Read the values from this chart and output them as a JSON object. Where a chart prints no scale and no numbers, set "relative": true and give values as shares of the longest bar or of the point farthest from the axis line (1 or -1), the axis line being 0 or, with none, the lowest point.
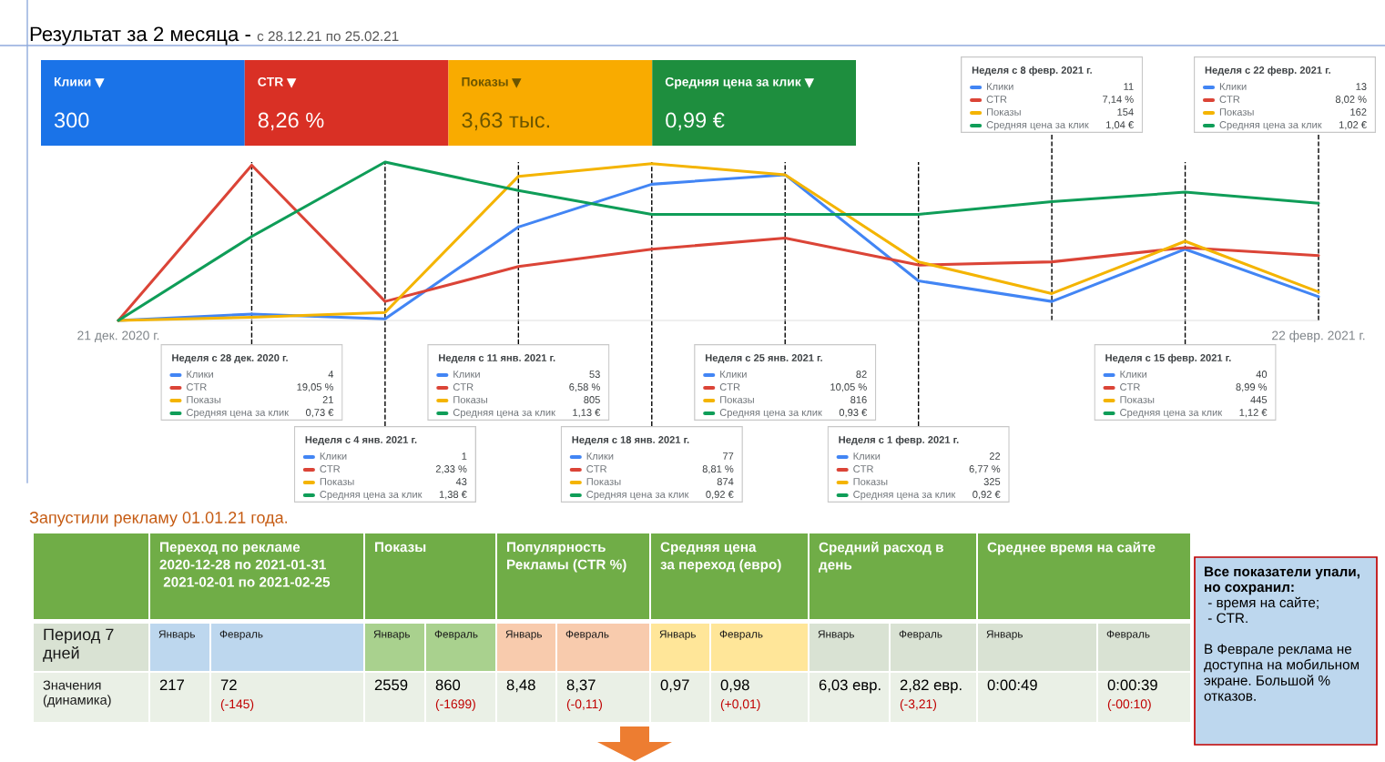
{
  "chart_data": [
    {
      "type": "other",
      "title": "Результат за 2 месяца -",
      "subtitle": "с 28.12.21 по 25.02.21",
      "categories": [
        "Клики",
        "CTR",
        "Показы",
        "Средняя цена за клик"
      ],
      "value_labels": [
        "300",
        "8,26 %",
        "3,63 тыс.",
        "0,99 €"
      ],
      "colors": [
        "#1a73e8",
        "#d93025",
        "#f9ab00",
        "#1e8e3e"
      ]
    },
    {
      "type": "line",
      "relative": true,
      "x": [
        "2020-12-21",
        "2020-12-28",
        "2021-01-04",
        "2021-01-11",
        "2021-01-18",
        "2021-01-25",
        "2021-02-01",
        "2021-02-08",
        "2021-02-15",
        "2021-02-22"
      ],
      "xlim": [
        "2020-12-21",
        "2021-02-22"
      ],
      "xticks": [
        {
          "value": "2020-12-21",
          "label": "21 дек. 2020 г."
        },
        {
          "value": "2021-02-22",
          "label": "22 февр. 2021 г."
        }
      ],
      "line_style": "solid",
      "series": [
        {
          "color": "#4285f4",
          "values": [
            0,
            0.04,
            0.01,
            0.59,
            0.86,
            0.92,
            0.25,
            0.12,
            0.45,
            0.15
          ]
        },
        {
          "color": "#db4437",
          "values": [
            0,
            0.98,
            0.12,
            0.34,
            0.45,
            0.52,
            0.35,
            0.37,
            0.46,
            0.41
          ]
        },
        {
          "color": "#f4b400",
          "values": [
            0,
            0.02,
            0.05,
            0.91,
            0.99,
            0.92,
            0.37,
            0.17,
            0.5,
            0.18
          ]
        },
        {
          "color": "#0f9d58",
          "values": [
            0,
            0.53,
            1,
            0.82,
            0.67,
            0.67,
            0.67,
            0.75,
            0.81,
            0.74
          ]
        }
      ],
      "ref_lines": [
        {
          "axis": "x",
          "value": "2020-12-28",
          "color": "#000000",
          "line_style": "dashed"
        },
        {
          "axis": "x",
          "value": "2021-01-04",
          "color": "#000000",
          "line_style": "dashed"
        },
        {
          "axis": "x",
          "value": "2021-01-11",
          "color": "#000000",
          "line_style": "dashed"
        },
        {
          "axis": "x",
          "value": "2021-01-18",
          "color": "#000000",
          "line_style": "dashed"
        },
        {
          "axis": "x",
          "value": "2021-01-25",
          "color": "#000000",
          "line_style": "dashed"
        },
        {
          "axis": "x",
          "value": "2021-02-01",
          "color": "#000000",
          "line_style": "dashed"
        },
        {
          "axis": "x",
          "value": "2021-02-08",
          "color": "#000000",
          "line_style": "dashed"
        },
        {
          "axis": "x",
          "value": "2021-02-15",
          "color": "#000000",
          "line_style": "dashed"
        },
        {
          "axis": "x",
          "value": "2021-02-22",
          "color": "#000000",
          "line_style": "dashed"
        }
      ]
    },
    {
      "type": "other",
      "title": "Неделя с 28 дек. 2020 г.",
      "categories": [
        "Клики",
        "CTR",
        "Показы",
        "Средняя цена за клик"
      ],
      "value_labels": [
        "4",
        "19,05 %",
        "21",
        "0,73 €"
      ]
    },
    {
      "type": "other",
      "title": "Неделя с 4 янв. 2021 г.",
      "categories": [
        "Клики",
        "CTR",
        "Показы",
        "Средняя цена за клик"
      ],
      "value_labels": [
        "1",
        "2,33 %",
        "43",
        "1,38 €"
      ]
    },
    {
      "type": "other",
      "title": "Неделя с 11 янв. 2021 г.",
      "categories": [
        "Клики",
        "CTR",
        "Показы",
        "Средняя цена за клик"
      ],
      "value_labels": [
        "53",
        "6,58 %",
        "805",
        "1,13 €"
      ]
    },
    {
      "type": "other",
      "title": "Неделя с 18 янв. 2021 г.",
      "categories": [
        "Клики",
        "CTR",
        "Показы",
        "Средняя цена за клик"
      ],
      "value_labels": [
        "77",
        "8,81 %",
        "874",
        "0,92 €"
      ]
    },
    {
      "type": "other",
      "title": "Неделя с 25 янв. 2021 г.",
      "categories": [
        "Клики",
        "CTR",
        "Показы",
        "Средняя цена за клик"
      ],
      "value_labels": [
        "82",
        "10,05 %",
        "816",
        "0,93 €"
      ]
    },
    {
      "type": "other",
      "title": "Неделя с 1 февр. 2021 г.",
      "categories": [
        "Клики",
        "CTR",
        "Показы",
        "Средняя цена за клик"
      ],
      "value_labels": [
        "22",
        "6,77 %",
        "325",
        "0,92 €"
      ]
    },
    {
      "type": "other",
      "title": "Неделя с 8 февр. 2021 г.",
      "categories": [
        "Клики",
        "CTR",
        "Показы",
        "Средняя цена за клик"
      ],
      "value_labels": [
        "11",
        "7,14 %",
        "154",
        "1,04 €"
      ]
    },
    {
      "type": "other",
      "title": "Неделя с 15 февр. 2021 г.",
      "categories": [
        "Клики",
        "CTR",
        "Показы",
        "Средняя цена за клик"
      ],
      "value_labels": [
        "40",
        "8,99 %",
        "445",
        "1,12 €"
      ]
    },
    {
      "type": "other",
      "title": "Неделя с 22 февр. 2021 г.",
      "categories": [
        "Клики",
        "CTR",
        "Показы",
        "Средняя цена за клик"
      ],
      "value_labels": [
        "13",
        "8,02 %",
        "162",
        "1,02 €"
      ]
    },
    {
      "type": "other",
      "title": "Запустили рекламу 01.01.21 года.",
      "categories": [
        null,
        "Переход по рекламе\n2020-12-28 по 2021-01-31\n 2021-02-01 по 2021-02-25",
        "Показы",
        "Популярность\nРекламы (CTR %)",
        "Средняя цена\nза переход (евро)",
        "Средний расход в\nдень",
        "Среднее время на сайте"
      ],
      "y_categories": [
        "Период 7\nдней",
        "Значения\n(динамика)"
      ],
      "cell_labels": [
        [
          "Январь",
          "Февраль",
          "Январь",
          "Февраль",
          "Январь",
          "Февраль",
          "Январь",
          "Февраль",
          "Январь",
          "Февраль",
          "Январь",
          "Февраль"
        ],
        [
          "217",
          "72\n(-145)",
          "2559",
          "860\n(-1699)",
          "8,48",
          "8,37\n(-0,11)",
          "0,97",
          "0,98\n(+0,01)",
          "6,03 евр.",
          "2,82 евр.\n(-3,21)",
          "0:00:49",
          "0:00:39\n(-00:10)"
        ]
      ],
      "annotations": [
        "Все показатели упали,\nно сохранил:",
        " - время на сайте;\n - CTR.\n\nВ Феврале реклама не\nдоступна на мобильном\nэкране. Большой %\nотказов."
      ]
    }
  ]
}
